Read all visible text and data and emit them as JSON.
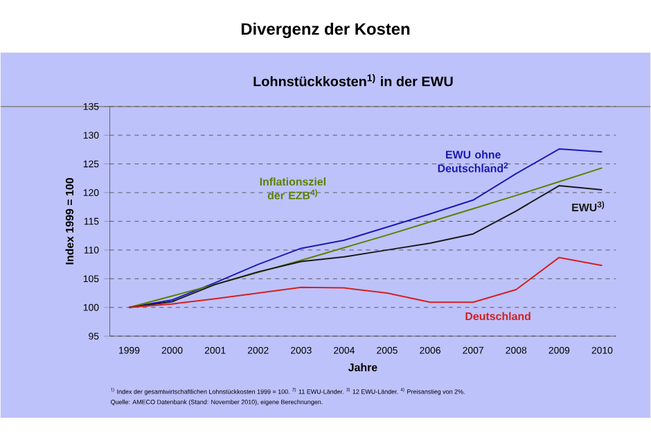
{
  "chart_data": {
    "type": "line",
    "title": "Divergenz der Kosten",
    "subtitle": "Lohnstückkosten$^{1)}$ in der EWU",
    "xlabel": "Jahre",
    "ylabel": "Index 1999 = 100",
    "categories": [
      "1999",
      "2000",
      "2001",
      "2002",
      "2003",
      "2004",
      "2005",
      "2006",
      "2007",
      "2008",
      "2009",
      "2010"
    ],
    "series": [
      {
        "name": "EWU ohne Deutschland$^{2}$",
        "color": "#1a1ab4",
        "values": [
          100,
          101.3,
          104.3,
          107.5,
          110.3,
          111.7,
          114,
          116.3,
          118.7,
          123.3,
          127.6,
          127.1
        ]
      },
      {
        "name": "Inflationsziel der EZB$^{4)}$",
        "color": "#5a8000",
        "values": [
          100,
          102,
          104,
          106.1,
          108.2,
          110.4,
          112.6,
          114.9,
          117.2,
          119.5,
          121.9,
          124.3
        ]
      },
      {
        "name": "EWU$^{3)}$",
        "color": "#1a1a1a",
        "values": [
          100,
          101,
          104,
          106.2,
          108,
          108.8,
          110,
          111.2,
          112.8,
          116.8,
          121.2,
          120.5
        ]
      },
      {
        "name": "Deutschland",
        "color": "#d42020",
        "values": [
          100,
          100.6,
          101.5,
          102.5,
          103.5,
          103.4,
          102.5,
          100.9,
          100.9,
          103.1,
          108.7,
          107.3
        ]
      }
    ],
    "ylim": [
      95,
      135
    ],
    "yticks": [
      95,
      100,
      105,
      110,
      115,
      120,
      125,
      130,
      135
    ],
    "grid": "y",
    "legend": false,
    "marker": "none",
    "line_style": "solid",
    "annotations": [
      "$^{1)}$ Index der gesamtwirtschaftlichen Lohnstückkosten 1999 = 100. $^{2)}$ 11 EWU-Länder. $^{3)}$ 12 EWU-Länder. $^{4)}$ Preisanstieg von 2%.",
      "Quelle: AMECO Datenbank (Stand: November 2010), eigene Berechnungen."
    ]
  }
}
